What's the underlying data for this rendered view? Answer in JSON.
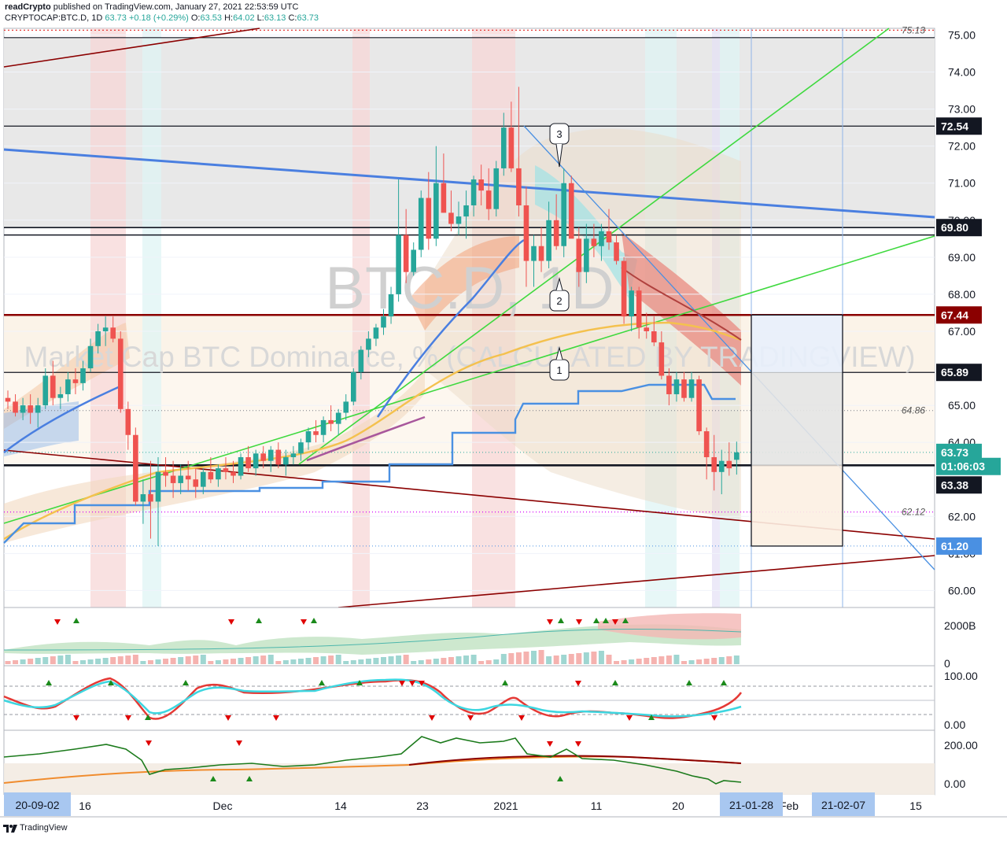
{
  "header": {
    "author": "readCrypto",
    "published_text": "published on TradingView.com, January 27, 2021 22:53:59 UTC",
    "symbol": "CRYPTOCAP:BTC.D, 1D",
    "last": "63.73",
    "change": "+0.18 (+0.29%)",
    "o_label": "O:",
    "o": "63.53",
    "h_label": "H:",
    "h": "64.02",
    "l_label": "L:",
    "l": "63.13",
    "c_label": "C:",
    "c": "63.73"
  },
  "watermark": {
    "title": "BTC.D, 1D",
    "subtitle": "Market Cap BTC Dominance, % (CALCULATED BY TRADINGVIEW)"
  },
  "colors": {
    "up": "#26a69a",
    "down": "#ef5350",
    "blue_line": "#4a7fe0",
    "green_line": "#3fd93f",
    "dark_red": "#8b0000",
    "label_blue": "#4a90e2",
    "label_teal": "#26a69a"
  },
  "chart_data": {
    "type": "candlestick",
    "symbol": "CRYPTOCAP:BTC.D",
    "interval": "1D",
    "y_axis": {
      "ticks": [
        "75.00",
        "74.00",
        "73.00",
        "72.00",
        "71.00",
        "70.00",
        "69.00",
        "68.00",
        "67.00",
        "65.00",
        "64.00",
        "62.00",
        "61.00",
        "60.00"
      ],
      "range": [
        59.6,
        75.2
      ]
    },
    "price_labels": [
      {
        "value": "72.54",
        "style": "black"
      },
      {
        "value": "69.80",
        "style": "black"
      },
      {
        "value": "67.44",
        "style": "darkred"
      },
      {
        "value": "65.89",
        "style": "black"
      },
      {
        "value": "63.73",
        "style": "teal"
      },
      {
        "value": "01:06:03",
        "style": "teal"
      },
      {
        "value": "63.38",
        "style": "black"
      },
      {
        "value": "61.20",
        "style": "blue"
      }
    ],
    "plain_labels": [
      "75.13",
      "64.86",
      "62.12"
    ],
    "horizontal_levels": [
      75.13,
      74.93,
      72.54,
      69.8,
      69.6,
      67.44,
      65.89,
      63.38
    ],
    "x_axis": {
      "ticks": [
        "16",
        "Dec",
        "14",
        "23",
        "2021",
        "11",
        "20",
        "Feb",
        "15"
      ],
      "highlight_labels": [
        "20-09-02",
        "21-01-28",
        "21-02-07"
      ]
    },
    "candles": [
      [
        65.2,
        65.4,
        64.9,
        65.1
      ],
      [
        65.1,
        65.3,
        64.7,
        64.8
      ],
      [
        64.8,
        65.2,
        64.6,
        65.0
      ],
      [
        65.0,
        65.3,
        64.5,
        64.8
      ],
      [
        64.8,
        65.2,
        64.4,
        65.0
      ],
      [
        65.0,
        66.0,
        64.9,
        65.8
      ],
      [
        65.8,
        66.2,
        65.0,
        65.2
      ],
      [
        65.2,
        65.5,
        64.9,
        65.3
      ],
      [
        65.3,
        65.9,
        65.1,
        65.7
      ],
      [
        65.7,
        66.0,
        65.3,
        65.6
      ],
      [
        65.6,
        66.2,
        65.4,
        66.0
      ],
      [
        66.0,
        66.8,
        65.9,
        66.6
      ],
      [
        66.6,
        67.2,
        66.4,
        67.0
      ],
      [
        67.0,
        67.4,
        66.6,
        67.1
      ],
      [
        67.1,
        67.4,
        66.7,
        66.8
      ],
      [
        66.8,
        67.0,
        64.8,
        64.9
      ],
      [
        64.9,
        65.1,
        63.8,
        64.2
      ],
      [
        64.2,
        64.4,
        62.3,
        62.4
      ],
      [
        62.4,
        63.0,
        61.8,
        62.6
      ],
      [
        62.6,
        63.5,
        61.4,
        62.4
      ],
      [
        62.4,
        63.6,
        61.2,
        63.2
      ],
      [
        63.2,
        63.6,
        62.8,
        63.1
      ],
      [
        63.1,
        63.5,
        62.5,
        62.9
      ],
      [
        62.9,
        63.4,
        62.6,
        63.1
      ],
      [
        63.1,
        63.5,
        62.7,
        63.0
      ],
      [
        63.0,
        63.3,
        62.5,
        62.8
      ],
      [
        62.8,
        63.3,
        62.6,
        63.2
      ],
      [
        63.2,
        63.6,
        62.9,
        63.0
      ],
      [
        63.0,
        63.4,
        62.8,
        63.3
      ],
      [
        63.3,
        63.6,
        63.0,
        63.2
      ],
      [
        63.2,
        63.5,
        62.9,
        63.1
      ],
      [
        63.1,
        63.7,
        63.0,
        63.6
      ],
      [
        63.6,
        63.9,
        63.2,
        63.3
      ],
      [
        63.3,
        63.8,
        63.1,
        63.7
      ],
      [
        63.7,
        63.9,
        63.3,
        63.5
      ],
      [
        63.5,
        63.9,
        63.2,
        63.8
      ],
      [
        63.8,
        64.0,
        63.3,
        63.4
      ],
      [
        63.4,
        63.8,
        63.1,
        63.6
      ],
      [
        63.6,
        63.9,
        63.4,
        63.7
      ],
      [
        63.7,
        64.1,
        63.5,
        64.0
      ],
      [
        64.0,
        64.4,
        63.8,
        64.3
      ],
      [
        64.3,
        64.6,
        64.0,
        64.2
      ],
      [
        64.2,
        64.7,
        64.0,
        64.6
      ],
      [
        64.6,
        65.0,
        64.3,
        64.5
      ],
      [
        64.5,
        64.9,
        64.2,
        64.8
      ],
      [
        64.8,
        65.3,
        64.6,
        65.1
      ],
      [
        65.1,
        66.0,
        65.0,
        65.9
      ],
      [
        65.9,
        66.6,
        65.7,
        66.5
      ],
      [
        66.5,
        67.0,
        66.3,
        66.8
      ],
      [
        66.8,
        67.2,
        66.6,
        67.1
      ],
      [
        67.1,
        67.6,
        66.9,
        67.4
      ],
      [
        67.4,
        68.2,
        67.2,
        68.0
      ],
      [
        68.0,
        71.1,
        67.8,
        69.6
      ],
      [
        69.6,
        70.3,
        68.3,
        68.6
      ],
      [
        68.6,
        69.4,
        68.5,
        69.2
      ],
      [
        69.2,
        70.8,
        69.0,
        70.6
      ],
      [
        70.6,
        71.3,
        69.2,
        69.5
      ],
      [
        69.5,
        72.0,
        69.3,
        71.0
      ],
      [
        71.0,
        71.8,
        70.2,
        70.2
      ],
      [
        70.2,
        70.8,
        69.7,
        69.9
      ],
      [
        69.9,
        70.5,
        69.6,
        70.1
      ],
      [
        70.1,
        70.8,
        69.5,
        70.4
      ],
      [
        70.4,
        71.2,
        70.1,
        71.1
      ],
      [
        71.1,
        71.5,
        70.4,
        70.8
      ],
      [
        70.8,
        71.4,
        70.0,
        70.3
      ],
      [
        70.3,
        71.6,
        70.1,
        71.4
      ],
      [
        71.4,
        72.9,
        71.2,
        72.5
      ],
      [
        72.5,
        73.2,
        71.3,
        71.4
      ],
      [
        71.4,
        73.6,
        70.1,
        70.4
      ],
      [
        70.4,
        70.9,
        68.2,
        68.9
      ],
      [
        68.9,
        69.6,
        68.2,
        69.3
      ],
      [
        69.3,
        69.8,
        68.6,
        68.9
      ],
      [
        68.9,
        70.5,
        68.7,
        70.0
      ],
      [
        70.0,
        70.7,
        69.2,
        69.3
      ],
      [
        69.3,
        71.4,
        69.0,
        71.0
      ],
      [
        71.0,
        71.2,
        69.6,
        69.5
      ],
      [
        69.5,
        69.8,
        68.2,
        68.6
      ],
      [
        68.6,
        69.9,
        68.3,
        69.5
      ],
      [
        69.5,
        69.9,
        69.0,
        69.3
      ],
      [
        69.3,
        69.9,
        68.9,
        69.7
      ],
      [
        69.7,
        70.3,
        69.2,
        69.4
      ],
      [
        69.4,
        69.6,
        68.8,
        68.9
      ],
      [
        68.9,
        69.0,
        67.2,
        67.4
      ],
      [
        67.4,
        68.2,
        67.0,
        68.1
      ],
      [
        68.1,
        68.2,
        66.8,
        67.1
      ],
      [
        67.1,
        67.5,
        66.8,
        67.0
      ],
      [
        67.0,
        67.4,
        66.6,
        66.7
      ],
      [
        66.7,
        67.0,
        65.7,
        65.8
      ],
      [
        65.8,
        66.0,
        65.0,
        65.3
      ],
      [
        65.3,
        65.9,
        65.1,
        65.7
      ],
      [
        65.7,
        65.9,
        65.1,
        65.2
      ],
      [
        65.2,
        65.9,
        65.1,
        65.7
      ],
      [
        65.7,
        65.8,
        64.2,
        64.3
      ],
      [
        64.3,
        64.4,
        63.0,
        63.6
      ],
      [
        63.6,
        64.2,
        62.7,
        63.2
      ],
      [
        63.2,
        63.8,
        62.6,
        63.5
      ],
      [
        63.5,
        64.0,
        63.1,
        63.3
      ],
      [
        63.53,
        64.02,
        63.13,
        63.73
      ]
    ],
    "trade_box": {
      "top": 67.44,
      "entry": 63.38,
      "mid": 65.89,
      "bottom": 61.2
    },
    "wave_labels": [
      "1",
      "2",
      "3"
    ],
    "panes": [
      {
        "name": "volume",
        "ticks": [
          "2000B",
          "0"
        ]
      },
      {
        "name": "stochastic",
        "ticks": [
          "100.00",
          "0.00"
        ]
      },
      {
        "name": "indicator",
        "ticks": [
          "200.00",
          "0.00"
        ]
      }
    ]
  },
  "footer": {
    "brand": "TradingView"
  }
}
